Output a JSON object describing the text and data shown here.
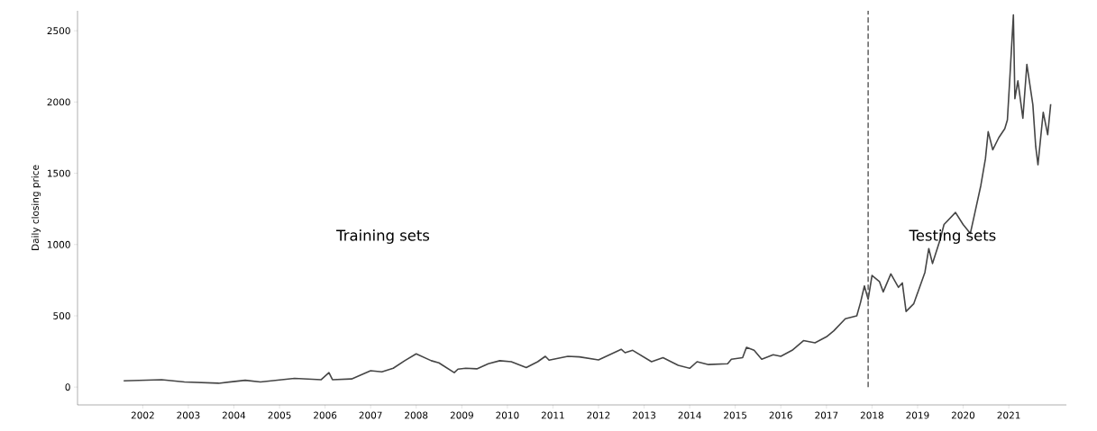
{
  "chart_data": {
    "type": "line",
    "ylabel": "Daily closing price",
    "x": [
      "2001-08",
      "2002-06",
      "2002-12",
      "2003-09",
      "2004-04",
      "2004-08",
      "2005-05",
      "2005-12",
      "2006-02",
      "2006-03",
      "2006-08",
      "2007-01",
      "2007-04",
      "2007-07",
      "2007-10",
      "2008-01",
      "2008-05",
      "2008-07",
      "2008-08",
      "2008-11",
      "2008-12",
      "2009-02",
      "2009-05",
      "2009-08",
      "2009-11",
      "2010-02",
      "2010-06",
      "2010-09",
      "2010-11",
      "2010-12",
      "2011-05",
      "2011-08",
      "2012-01",
      "2012-07",
      "2012-08",
      "2012-10",
      "2013-03",
      "2013-06",
      "2013-10",
      "2014-01",
      "2014-03",
      "2014-06",
      "2014-11",
      "2014-12",
      "2015-03",
      "2015-04",
      "2015-06",
      "2015-08",
      "2015-11",
      "2016-01",
      "2016-04",
      "2016-07",
      "2016-10",
      "2017-01",
      "2017-03",
      "2017-06",
      "2017-09",
      "2017-10",
      "2017-11",
      "2017-12",
      "2018-01",
      "2018-03",
      "2018-04",
      "2018-06",
      "2018-08",
      "2018-09",
      "2018-10",
      "2018-12",
      "2019-03",
      "2019-04",
      "2019-05",
      "2019-07",
      "2019-08",
      "2019-11",
      "2020-01-01",
      "2020-02-28",
      "2020-04-05",
      "2020-05-22",
      "2020-06-28",
      "2020-07-20",
      "2020-08-26",
      "2020-10-13",
      "2020-11-30",
      "2020-12-21",
      "2021-01-09",
      "2021-02-07",
      "2021-02-19",
      "2021-03-15",
      "2021-04-24",
      "2021-05-26",
      "2021-07-13",
      "2021-08-05",
      "2021-08-23",
      "2021-10-04",
      "2021-11-09",
      "2021-12-03"
    ],
    "series": [
      {
        "color": "#454545",
        "values": [
          44,
          52,
          36,
          27,
          48,
          36,
          61,
          52,
          101,
          52,
          57,
          115,
          107,
          132,
          185,
          233,
          185,
          170,
          153,
          101,
          126,
          132,
          128,
          164,
          185,
          178,
          137,
          178,
          216,
          189,
          216,
          212,
          191,
          265,
          241,
          258,
          178,
          206,
          153,
          132,
          178,
          158,
          164,
          195,
          206,
          279,
          258,
          195,
          227,
          216,
          258,
          326,
          311,
          353,
          395,
          479,
          500,
          594,
          710,
          616,
          783,
          741,
          668,
          794,
          700,
          731,
          531,
          584,
          805,
          972,
          867,
          1035,
          1141,
          1225,
          1141,
          1078,
          1225,
          1414,
          1602,
          1792,
          1665,
          1750,
          1813,
          1875,
          2160,
          2611,
          2023,
          2149,
          1886,
          2264,
          1981,
          1687,
          1560,
          1928,
          1771,
          1985
        ]
      }
    ],
    "xlim": [
      "2000-07-27",
      "2022-04-08"
    ],
    "ylim": [
      -125,
      2640
    ],
    "xticks": [
      "2002",
      "2003",
      "2004",
      "2005",
      "2006",
      "2007",
      "2008",
      "2009",
      "2010",
      "2011",
      "2012",
      "2013",
      "2014",
      "2015",
      "2016",
      "2017",
      "2018",
      "2019",
      "2020",
      "2021"
    ],
    "yticks": [
      0,
      500,
      1000,
      1500,
      2000,
      2500
    ],
    "ref_lines": [
      {
        "axis": "x",
        "value": "2017-12",
        "color": "#555555",
        "line_style": "dashed"
      }
    ],
    "annotations": [
      "Training sets",
      "Testing sets"
    ]
  }
}
